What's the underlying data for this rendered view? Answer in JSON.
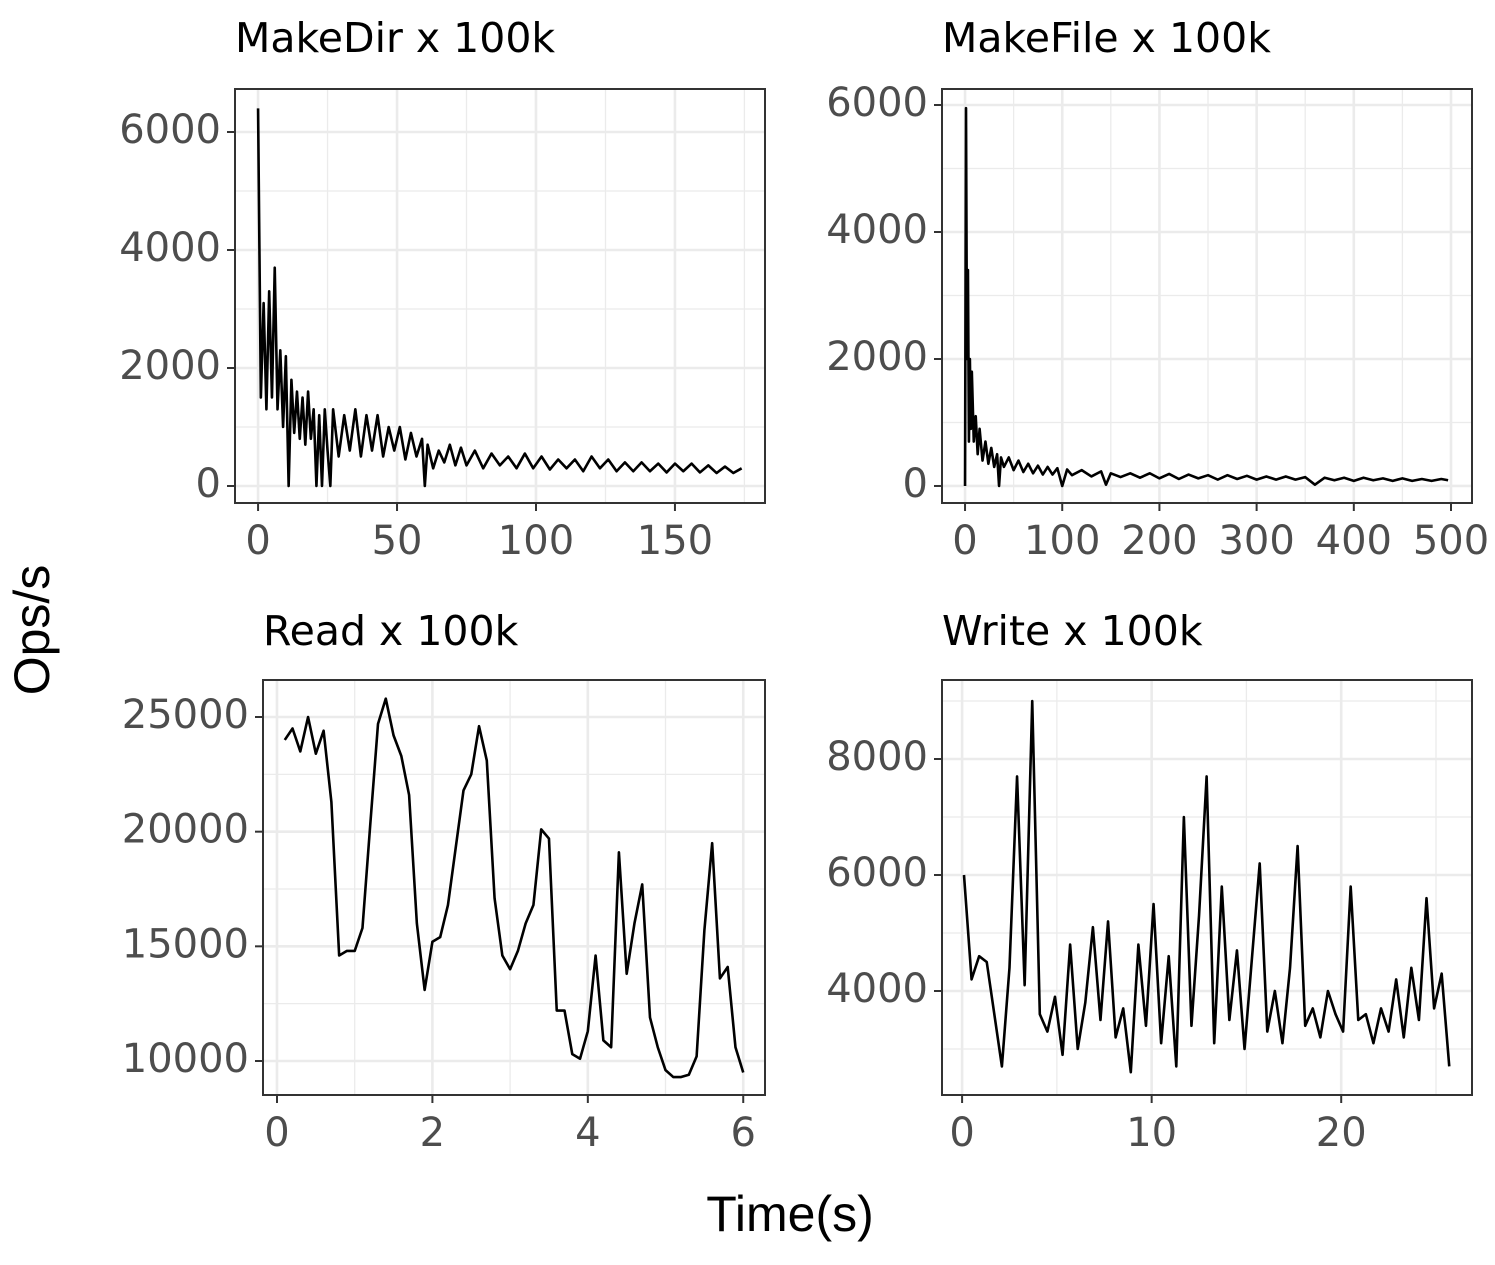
{
  "xlabel": "Time(s)",
  "ylabel": "Ops/s",
  "chart_data": [
    {
      "type": "line",
      "title": "MakeDir x 100k",
      "color": "#000000",
      "grid": true,
      "xlim": [
        -8.3,
        182.4
      ],
      "ylim": [
        -288,
        6729
      ],
      "xticks": [
        0,
        50,
        100,
        150
      ],
      "yticks": [
        0,
        2000,
        4000,
        6000
      ],
      "xminor": [
        25,
        75,
        125,
        175
      ],
      "yminor": [
        1000,
        3000,
        5000
      ],
      "x": [
        0,
        1,
        2,
        3,
        4,
        5,
        6,
        7,
        8,
        9,
        10,
        11,
        12,
        13,
        14,
        15,
        16,
        17,
        18,
        19,
        20,
        21,
        22,
        23,
        24,
        25,
        26,
        27,
        29,
        31,
        33,
        35,
        37,
        39,
        41,
        43,
        45,
        47,
        49,
        51,
        53,
        55,
        57,
        59,
        60,
        61,
        63,
        65,
        67,
        69,
        71,
        73,
        75,
        78,
        81,
        84,
        87,
        90,
        93,
        96,
        99,
        102,
        105,
        108,
        111,
        114,
        117,
        120,
        123,
        126,
        129,
        132,
        135,
        138,
        141,
        144,
        147,
        150,
        153,
        156,
        159,
        162,
        165,
        168,
        171,
        174
      ],
      "values": [
        6400,
        1500,
        3100,
        1300,
        3300,
        1500,
        3700,
        1300,
        2300,
        1000,
        2200,
        0,
        1800,
        900,
        1600,
        800,
        1500,
        700,
        1600,
        800,
        1300,
        0,
        1200,
        0,
        1300,
        600,
        0,
        1300,
        500,
        1200,
        600,
        1300,
        500,
        1200,
        600,
        1200,
        500,
        1000,
        600,
        1000,
        450,
        900,
        500,
        800,
        0,
        700,
        300,
        600,
        400,
        700,
        350,
        650,
        350,
        600,
        300,
        550,
        350,
        500,
        300,
        550,
        300,
        500,
        280,
        450,
        300,
        450,
        250,
        500,
        300,
        450,
        250,
        400,
        250,
        400,
        250,
        380,
        230,
        380,
        250,
        380,
        230,
        350,
        220,
        330,
        220,
        300
      ]
    },
    {
      "type": "line",
      "title": "MakeFile x 100k",
      "color": "#000000",
      "grid": true,
      "xlim": [
        -23.7,
        521.6
      ],
      "ylim": [
        -268,
        6252
      ],
      "xticks": [
        0,
        100,
        200,
        300,
        400,
        500
      ],
      "yticks": [
        0,
        2000,
        4000,
        6000
      ],
      "xminor": [
        50,
        150,
        250,
        350,
        450
      ],
      "yminor": [
        1000,
        3000,
        5000
      ],
      "x": [
        0,
        1,
        2,
        3,
        4,
        5,
        6,
        7,
        9,
        11,
        13,
        15,
        18,
        21,
        24,
        27,
        30,
        33,
        35,
        37,
        40,
        45,
        50,
        55,
        60,
        65,
        70,
        75,
        80,
        85,
        90,
        95,
        100,
        105,
        110,
        120,
        130,
        140,
        145,
        150,
        160,
        170,
        180,
        190,
        200,
        210,
        220,
        230,
        240,
        250,
        260,
        270,
        280,
        290,
        300,
        310,
        320,
        330,
        340,
        350,
        360,
        370,
        380,
        390,
        400,
        410,
        420,
        430,
        440,
        450,
        460,
        470,
        480,
        490,
        497
      ],
      "values": [
        0,
        5950,
        2000,
        3400,
        700,
        2000,
        900,
        1800,
        700,
        1100,
        500,
        900,
        400,
        700,
        350,
        600,
        300,
        500,
        0,
        450,
        300,
        450,
        250,
        400,
        220,
        350,
        200,
        320,
        180,
        300,
        180,
        280,
        0,
        260,
        170,
        250,
        150,
        230,
        20,
        200,
        140,
        200,
        130,
        200,
        120,
        190,
        110,
        180,
        120,
        170,
        100,
        170,
        110,
        160,
        100,
        150,
        100,
        150,
        100,
        140,
        20,
        130,
        90,
        130,
        80,
        130,
        90,
        120,
        80,
        120,
        80,
        110,
        80,
        110,
        90
      ]
    },
    {
      "type": "line",
      "title": "Read x 100k",
      "color": "#000000",
      "grid": true,
      "xlim": [
        -0.18,
        6.28
      ],
      "ylim": [
        8517,
        26614
      ],
      "xticks": [
        0,
        2,
        4,
        6
      ],
      "yticks": [
        10000,
        15000,
        20000,
        25000
      ],
      "xminor": [
        1,
        3,
        5
      ],
      "yminor": [
        12500,
        17500,
        22500
      ],
      "x": [
        0.1,
        0.2,
        0.3,
        0.4,
        0.5,
        0.6,
        0.7,
        0.8,
        0.9,
        1.0,
        1.1,
        1.2,
        1.3,
        1.4,
        1.5,
        1.6,
        1.7,
        1.8,
        1.9,
        2.0,
        2.1,
        2.2,
        2.3,
        2.4,
        2.5,
        2.6,
        2.7,
        2.8,
        2.9,
        3.0,
        3.1,
        3.2,
        3.3,
        3.4,
        3.5,
        3.6,
        3.7,
        3.8,
        3.9,
        4.0,
        4.1,
        4.2,
        4.3,
        4.4,
        4.5,
        4.6,
        4.7,
        4.8,
        4.9,
        5.0,
        5.1,
        5.2,
        5.3,
        5.4,
        5.5,
        5.6,
        5.7,
        5.8,
        5.9,
        6.0
      ],
      "values": [
        24000,
        24500,
        23500,
        25000,
        23400,
        24400,
        21300,
        14600,
        14800,
        14800,
        15800,
        20300,
        24700,
        25800,
        24200,
        23300,
        21600,
        16000,
        13100,
        15200,
        15400,
        16800,
        19300,
        21800,
        22500,
        24600,
        23100,
        17100,
        14600,
        14000,
        14800,
        16000,
        16800,
        20100,
        19700,
        12200,
        12200,
        10300,
        10100,
        11300,
        14600,
        10900,
        10600,
        19100,
        13800,
        16000,
        17700,
        11900,
        10600,
        9600,
        9300,
        9300,
        9400,
        10200,
        15700,
        19500,
        13600,
        14100,
        10600,
        9500
      ]
    },
    {
      "type": "line",
      "title": "Write x 100k",
      "color": "#000000",
      "grid": true,
      "xlim": [
        -1.06,
        26.9
      ],
      "ylim": [
        2207,
        9362
      ],
      "xticks": [
        0,
        10,
        20
      ],
      "yticks": [
        4000,
        6000,
        8000
      ],
      "xminor": [
        5,
        15,
        25
      ],
      "yminor": [
        3000,
        5000,
        7000,
        9000
      ],
      "x": [
        0.1,
        0.5,
        0.9,
        1.3,
        1.7,
        2.1,
        2.5,
        2.9,
        3.3,
        3.7,
        4.1,
        4.5,
        4.9,
        5.3,
        5.7,
        6.1,
        6.5,
        6.9,
        7.3,
        7.7,
        8.1,
        8.5,
        8.9,
        9.3,
        9.7,
        10.1,
        10.5,
        10.9,
        11.3,
        11.7,
        12.1,
        12.5,
        12.9,
        13.3,
        13.7,
        14.1,
        14.5,
        14.9,
        15.3,
        15.7,
        16.1,
        16.5,
        16.9,
        17.3,
        17.7,
        18.1,
        18.5,
        18.9,
        19.3,
        19.7,
        20.1,
        20.5,
        20.9,
        21.3,
        21.7,
        22.1,
        22.5,
        22.9,
        23.3,
        23.7,
        24.1,
        24.5,
        24.9,
        25.3,
        25.7
      ],
      "values": [
        6000,
        4200,
        4600,
        4500,
        3600,
        2700,
        4400,
        7700,
        4100,
        9000,
        3600,
        3300,
        3900,
        2900,
        4800,
        3000,
        3800,
        5100,
        3500,
        5200,
        3200,
        3700,
        2600,
        4800,
        3400,
        5500,
        3100,
        4600,
        2700,
        7000,
        3400,
        5300,
        7700,
        3100,
        5800,
        3500,
        4700,
        3000,
        4600,
        6200,
        3300,
        4000,
        3100,
        4400,
        6500,
        3400,
        3700,
        3200,
        4000,
        3600,
        3300,
        5800,
        3500,
        3600,
        3100,
        3700,
        3300,
        4200,
        3200,
        4400,
        3500,
        5600,
        3700,
        4300,
        2700
      ]
    }
  ]
}
